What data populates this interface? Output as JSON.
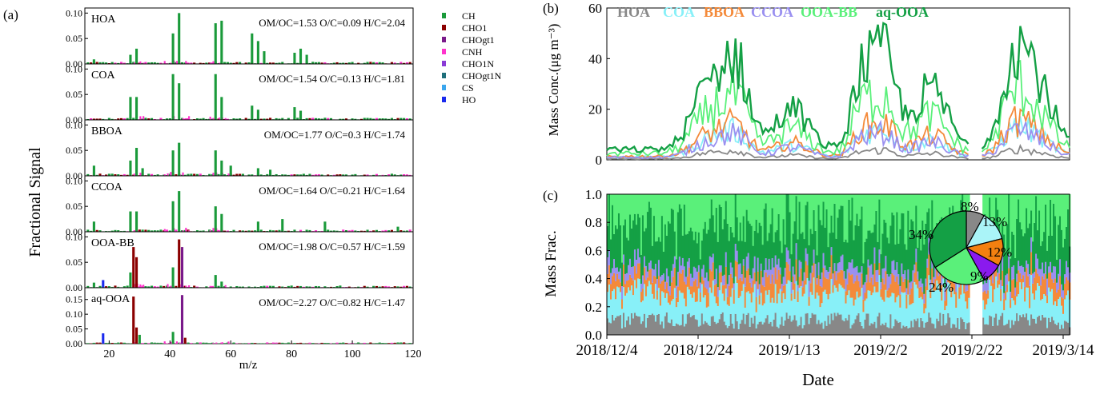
{
  "panel_a": {
    "label": "(a)",
    "ylabel": "Fractional Signal",
    "xlabel": "m/z",
    "xlim": [
      12,
      120
    ],
    "xticks": [
      "20",
      "40",
      "60",
      "80",
      "100",
      "120"
    ],
    "legend": [
      {
        "name": "CH",
        "color": "#1a9a3a"
      },
      {
        "name": "CHO1",
        "color": "#8b0000"
      },
      {
        "name": "CHOgt1",
        "color": "#7a1a8a"
      },
      {
        "name": "CNH",
        "color": "#ff33cc"
      },
      {
        "name": "CHO1N",
        "color": "#8a3ad6"
      },
      {
        "name": "CHOgt1N",
        "color": "#1e6e7a"
      },
      {
        "name": "CS",
        "color": "#3aa6ee"
      },
      {
        "name": "HO",
        "color": "#1a2aee"
      }
    ]
  },
  "chart_data": [
    {
      "type": "bar",
      "title": "HOA",
      "ratios": "OM/OC=1.53  O/C=0.09  H/C=2.04",
      "ylim": [
        0,
        0.11
      ],
      "yticks": [
        "0.00",
        "0.05",
        "0.10"
      ],
      "peaks": [
        {
          "x": 15,
          "series": {
            "CH": 0.009
          }
        },
        {
          "x": 27,
          "series": {
            "CH": 0.018
          }
        },
        {
          "x": 29,
          "series": {
            "CH": 0.03
          }
        },
        {
          "x": 41,
          "series": {
            "CH": 0.06
          }
        },
        {
          "x": 43,
          "series": {
            "CH": 0.1
          }
        },
        {
          "x": 55,
          "series": {
            "CH": 0.08
          }
        },
        {
          "x": 57,
          "series": {
            "CH": 0.085
          }
        },
        {
          "x": 67,
          "series": {
            "CH": 0.06
          }
        },
        {
          "x": 69,
          "series": {
            "CH": 0.045
          }
        },
        {
          "x": 71,
          "series": {
            "CH": 0.025
          }
        },
        {
          "x": 81,
          "series": {
            "CH": 0.022
          }
        },
        {
          "x": 83,
          "series": {
            "CH": 0.03
          }
        },
        {
          "x": 85,
          "series": {
            "CH": 0.018
          }
        }
      ]
    },
    {
      "type": "bar",
      "title": "COA",
      "ratios": "OM/OC=1.54  O/C=0.13  H/C=1.81",
      "ylim": [
        0,
        0.11
      ],
      "yticks": [
        "0.00",
        "0.05",
        "0.10"
      ],
      "peaks": [
        {
          "x": 27,
          "series": {
            "CH": 0.045
          }
        },
        {
          "x": 29,
          "series": {
            "CH": 0.045
          }
        },
        {
          "x": 41,
          "series": {
            "CH": 0.09
          }
        },
        {
          "x": 43,
          "series": {
            "CH": 0.072
          }
        },
        {
          "x": 55,
          "series": {
            "CH": 0.09
          }
        },
        {
          "x": 57,
          "series": {
            "CH": 0.045
          }
        },
        {
          "x": 67,
          "series": {
            "CH": 0.028
          }
        },
        {
          "x": 69,
          "series": {
            "CH": 0.02
          }
        },
        {
          "x": 81,
          "series": {
            "CH": 0.025
          }
        },
        {
          "x": 83,
          "series": {
            "CH": 0.018
          }
        }
      ]
    },
    {
      "type": "bar",
      "title": "BBOA",
      "ratios": "OM/OC=1.77  O/C=0.3  H/C=1.74",
      "ylim": [
        0,
        0.11
      ],
      "yticks": [
        "0.00",
        "0.05",
        "0.10"
      ],
      "peaks": [
        {
          "x": 15,
          "series": {
            "CH": 0.02
          }
        },
        {
          "x": 27,
          "series": {
            "CH": 0.03
          }
        },
        {
          "x": 29,
          "series": {
            "CH": 0.055
          }
        },
        {
          "x": 31,
          "series": {
            "CH": 0.015
          }
        },
        {
          "x": 41,
          "series": {
            "CH": 0.05
          }
        },
        {
          "x": 43,
          "series": {
            "CH": 0.065
          }
        },
        {
          "x": 55,
          "series": {
            "CH": 0.05
          }
        },
        {
          "x": 57,
          "series": {
            "CH": 0.03
          }
        },
        {
          "x": 60,
          "series": {
            "CH": 0.02
          }
        },
        {
          "x": 69,
          "series": {
            "CH": 0.015
          }
        },
        {
          "x": 73,
          "series": {
            "CH": 0.012
          }
        }
      ]
    },
    {
      "type": "bar",
      "title": "CCOA",
      "ratios": "OM/OC=1.64  O/C=0.21  H/C=1.64",
      "ylim": [
        0,
        0.11
      ],
      "yticks": [
        "0.00",
        "0.05",
        "0.10"
      ],
      "peaks": [
        {
          "x": 15,
          "series": {
            "CH": 0.02
          }
        },
        {
          "x": 27,
          "series": {
            "CH": 0.04
          }
        },
        {
          "x": 29,
          "series": {
            "CH": 0.04
          }
        },
        {
          "x": 41,
          "series": {
            "CH": 0.06
          }
        },
        {
          "x": 43,
          "series": {
            "CH": 0.08
          }
        },
        {
          "x": 55,
          "series": {
            "CH": 0.05
          }
        },
        {
          "x": 57,
          "series": {
            "CH": 0.035
          }
        },
        {
          "x": 69,
          "series": {
            "CH": 0.02
          }
        },
        {
          "x": 77,
          "series": {
            "CH": 0.025
          }
        },
        {
          "x": 91,
          "series": {
            "CH": 0.02
          }
        },
        {
          "x": 115,
          "series": {
            "CH": 0.01
          }
        }
      ]
    },
    {
      "type": "bar",
      "title": "OOA-BB",
      "ratios": "OM/OC=1.98  O/C=0.57  H/C=1.59",
      "ylim": [
        0,
        0.11
      ],
      "yticks": [
        "0.00",
        "0.05",
        "0.10"
      ],
      "peaks": [
        {
          "x": 15,
          "series": {
            "CH": 0.01
          }
        },
        {
          "x": 18,
          "series": {
            "HO": 0.015
          }
        },
        {
          "x": 27,
          "series": {
            "CH": 0.03
          }
        },
        {
          "x": 28,
          "series": {
            "CHO1": 0.08
          }
        },
        {
          "x": 29,
          "series": {
            "CHO1": 0.06
          }
        },
        {
          "x": 41,
          "series": {
            "CH": 0.04
          }
        },
        {
          "x": 43,
          "series": {
            "CHO1": 0.095
          }
        },
        {
          "x": 44,
          "series": {
            "CHOgt1": 0.08
          }
        },
        {
          "x": 55,
          "series": {
            "CH": 0.025
          }
        },
        {
          "x": 57,
          "series": {
            "CH": 0.012
          }
        }
      ]
    },
    {
      "type": "bar",
      "title": "aq-OOA",
      "ratios": "OM/OC=2.27  O/C=0.82  H/C=1.47",
      "ylim": [
        0,
        0.19
      ],
      "yticks": [
        "0.00",
        "0.05",
        "0.10",
        "0.15"
      ],
      "peaks": [
        {
          "x": 18,
          "series": {
            "HO": 0.035
          }
        },
        {
          "x": 28,
          "series": {
            "CHO1": 0.16
          }
        },
        {
          "x": 29,
          "series": {
            "CHO1": 0.055
          }
        },
        {
          "x": 30,
          "series": {
            "CH": 0.03
          }
        },
        {
          "x": 41,
          "series": {
            "CH": 0.04
          }
        },
        {
          "x": 44,
          "series": {
            "CHOgt1": 0.165
          }
        },
        {
          "x": 45,
          "series": {
            "CHO1": 0.02
          }
        }
      ]
    },
    {
      "type": "area",
      "panel_label": "(b)",
      "ylabel": "Mass Conc.(μg m⁻³)",
      "ylim": [
        0,
        60
      ],
      "yticks": [
        "0",
        "20",
        "40",
        "60"
      ],
      "series": [
        {
          "name": "HOA",
          "color": "#888888"
        },
        {
          "name": "COA",
          "color": "#88f0f8"
        },
        {
          "name": "BBOA",
          "color": "#f48a3a"
        },
        {
          "name": "CCOA",
          "color": "#9a90f0"
        },
        {
          "name": "OOA-BB",
          "color": "#5af07a"
        },
        {
          "name": "aq-OOA",
          "color": "#14a045"
        }
      ]
    },
    {
      "type": "area",
      "panel_label": "(c)",
      "ylabel": "Mass Frac.",
      "xlabel": "Date",
      "ylim": [
        0,
        1
      ],
      "yticks": [
        "0.0",
        "0.2",
        "0.4",
        "0.6",
        "0.8",
        "1.0"
      ],
      "xticks": [
        "2018/12/4",
        "2018/12/24",
        "2019/1/13",
        "2019/2/2",
        "2019/2/22",
        "2019/3/14"
      ]
    },
    {
      "type": "pie",
      "slices": [
        {
          "name": "HOA",
          "value": 8,
          "label": "8%",
          "color": "#888888"
        },
        {
          "name": "COA",
          "value": 13,
          "label": "13%",
          "color": "#aaf4f8"
        },
        {
          "name": "BBOA",
          "value": 12,
          "label": "12%",
          "color": "#f48010"
        },
        {
          "name": "CCOA",
          "value": 9,
          "label": "9%",
          "color": "#8a1aee"
        },
        {
          "name": "OOA-BB",
          "value": 24,
          "label": "24%",
          "color": "#5af07a"
        },
        {
          "name": "aq-OOA",
          "value": 34,
          "label": "34%",
          "color": "#14a045"
        }
      ]
    }
  ]
}
